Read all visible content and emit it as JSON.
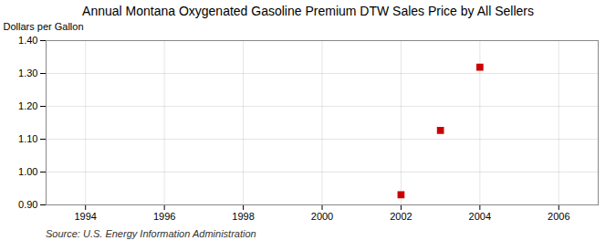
{
  "chart_data": {
    "type": "scatter",
    "title": "Annual Montana Oxygenated Gasoline Premium DTW Sales Price by All Sellers",
    "ylabel": "Dollars per Gallon",
    "source": "Source: U.S. Energy Information Administration",
    "x": [
      2002,
      2003,
      2004
    ],
    "values": [
      0.931,
      1.127,
      1.319
    ],
    "color": "#CC0000",
    "marker": "square",
    "xlim": [
      1993,
      2007
    ],
    "ylim": [
      0.9,
      1.4
    ],
    "xticks": [
      1994,
      1996,
      1998,
      2000,
      2002,
      2004,
      2006
    ],
    "yticks": [
      {
        "value": 0.9,
        "label": "0.90"
      },
      {
        "value": 1.0,
        "label": "1.00"
      },
      {
        "value": 1.1,
        "label": "1.10"
      },
      {
        "value": 1.2,
        "label": "1.20"
      },
      {
        "value": 1.3,
        "label": "1.30"
      },
      {
        "value": 1.4,
        "label": "1.40"
      }
    ],
    "grid": true
  }
}
